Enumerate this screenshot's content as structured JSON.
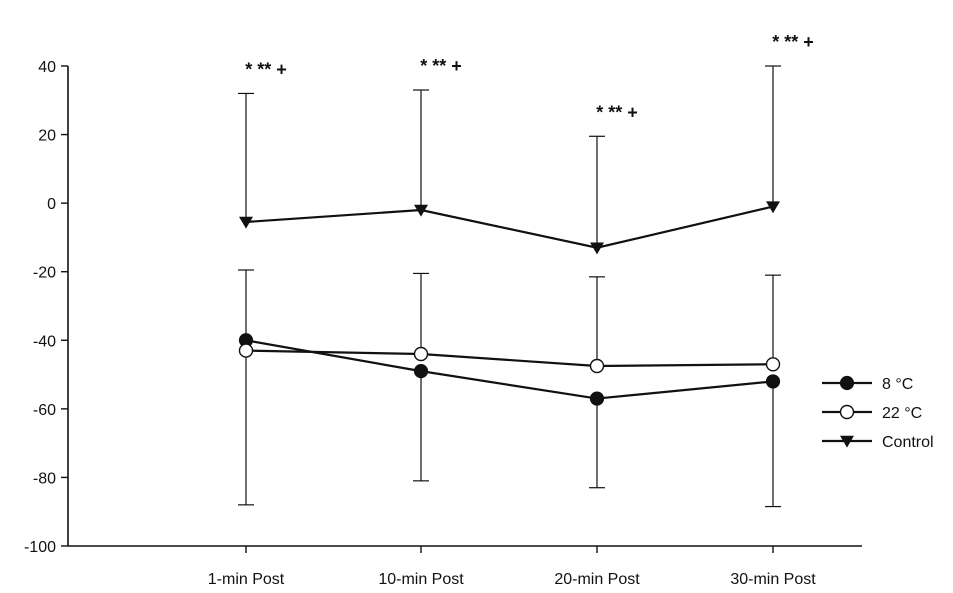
{
  "chart_data": {
    "type": "line",
    "title": "",
    "xlabel": "",
    "ylabel": "",
    "categories": [
      "1-min Post",
      "10-min Post",
      "20-min Post",
      "30-min Post"
    ],
    "ylim": [
      -100,
      40
    ],
    "yticks": [
      40,
      20,
      0,
      -20,
      -40,
      -60,
      -80,
      -100
    ],
    "grid": false,
    "legend_position": "right",
    "series": [
      {
        "name": "8 °C",
        "marker": "filled-circle",
        "color": "#111111",
        "values": [
          -40,
          -49,
          -57,
          -52
        ],
        "error_lower": [
          -88,
          -81,
          -83,
          -88.5
        ]
      },
      {
        "name": "22 °C",
        "marker": "open-circle",
        "color": "#111111",
        "values": [
          -43,
          -44,
          -47.5,
          -47
        ],
        "error_upper": [
          -19.5,
          -20.5,
          -21.5,
          -21
        ]
      },
      {
        "name": "Control",
        "marker": "filled-triangle-down",
        "color": "#111111",
        "values": [
          -5.5,
          -2,
          -13,
          -1
        ],
        "error_upper": [
          32,
          33,
          19.5,
          40
        ]
      }
    ],
    "annotations": [
      {
        "category": "1-min Post",
        "text": "*   **   +"
      },
      {
        "category": "10-min Post",
        "text": "*   **   +"
      },
      {
        "category": "20-min Post",
        "text": "*   **   +"
      },
      {
        "category": "30-min Post",
        "text": "*   **   +"
      }
    ]
  }
}
